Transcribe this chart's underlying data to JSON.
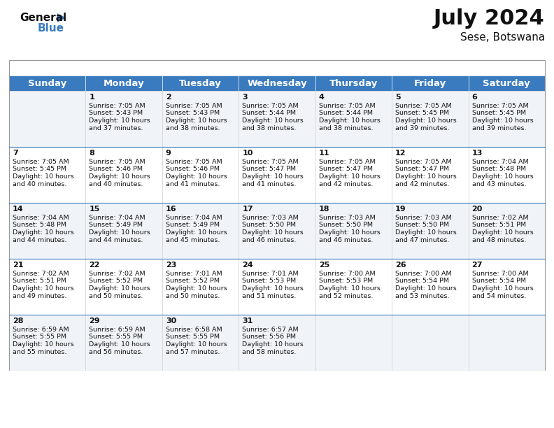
{
  "title": "July 2024",
  "subtitle": "Sese, Botswana",
  "header_color": "#3a7bbf",
  "header_text_color": "#ffffff",
  "row_bg_even": "#f0f4f8",
  "row_bg_odd": "#ffffff",
  "divider_color": "#3a7bbf",
  "cell_border_color": "#cccccc",
  "day_headers": [
    "Sunday",
    "Monday",
    "Tuesday",
    "Wednesday",
    "Thursday",
    "Friday",
    "Saturday"
  ],
  "title_fontsize": 22,
  "subtitle_fontsize": 11,
  "header_fontsize": 9.5,
  "cell_fontsize": 6.8,
  "day_num_fontsize": 8,
  "weeks": [
    [
      {
        "day": "",
        "sunrise": "",
        "sunset": "",
        "daylight": ""
      },
      {
        "day": "1",
        "sunrise": "7:05 AM",
        "sunset": "5:43 PM",
        "daylight": "10 hours and 37 minutes."
      },
      {
        "day": "2",
        "sunrise": "7:05 AM",
        "sunset": "5:43 PM",
        "daylight": "10 hours and 38 minutes."
      },
      {
        "day": "3",
        "sunrise": "7:05 AM",
        "sunset": "5:44 PM",
        "daylight": "10 hours and 38 minutes."
      },
      {
        "day": "4",
        "sunrise": "7:05 AM",
        "sunset": "5:44 PM",
        "daylight": "10 hours and 38 minutes."
      },
      {
        "day": "5",
        "sunrise": "7:05 AM",
        "sunset": "5:45 PM",
        "daylight": "10 hours and 39 minutes."
      },
      {
        "day": "6",
        "sunrise": "7:05 AM",
        "sunset": "5:45 PM",
        "daylight": "10 hours and 39 minutes."
      }
    ],
    [
      {
        "day": "7",
        "sunrise": "7:05 AM",
        "sunset": "5:45 PM",
        "daylight": "10 hours and 40 minutes."
      },
      {
        "day": "8",
        "sunrise": "7:05 AM",
        "sunset": "5:46 PM",
        "daylight": "10 hours and 40 minutes."
      },
      {
        "day": "9",
        "sunrise": "7:05 AM",
        "sunset": "5:46 PM",
        "daylight": "10 hours and 41 minutes."
      },
      {
        "day": "10",
        "sunrise": "7:05 AM",
        "sunset": "5:47 PM",
        "daylight": "10 hours and 41 minutes."
      },
      {
        "day": "11",
        "sunrise": "7:05 AM",
        "sunset": "5:47 PM",
        "daylight": "10 hours and 42 minutes."
      },
      {
        "day": "12",
        "sunrise": "7:05 AM",
        "sunset": "5:47 PM",
        "daylight": "10 hours and 42 minutes."
      },
      {
        "day": "13",
        "sunrise": "7:04 AM",
        "sunset": "5:48 PM",
        "daylight": "10 hours and 43 minutes."
      }
    ],
    [
      {
        "day": "14",
        "sunrise": "7:04 AM",
        "sunset": "5:48 PM",
        "daylight": "10 hours and 44 minutes."
      },
      {
        "day": "15",
        "sunrise": "7:04 AM",
        "sunset": "5:49 PM",
        "daylight": "10 hours and 44 minutes."
      },
      {
        "day": "16",
        "sunrise": "7:04 AM",
        "sunset": "5:49 PM",
        "daylight": "10 hours and 45 minutes."
      },
      {
        "day": "17",
        "sunrise": "7:03 AM",
        "sunset": "5:50 PM",
        "daylight": "10 hours and 46 minutes."
      },
      {
        "day": "18",
        "sunrise": "7:03 AM",
        "sunset": "5:50 PM",
        "daylight": "10 hours and 46 minutes."
      },
      {
        "day": "19",
        "sunrise": "7:03 AM",
        "sunset": "5:50 PM",
        "daylight": "10 hours and 47 minutes."
      },
      {
        "day": "20",
        "sunrise": "7:02 AM",
        "sunset": "5:51 PM",
        "daylight": "10 hours and 48 minutes."
      }
    ],
    [
      {
        "day": "21",
        "sunrise": "7:02 AM",
        "sunset": "5:51 PM",
        "daylight": "10 hours and 49 minutes."
      },
      {
        "day": "22",
        "sunrise": "7:02 AM",
        "sunset": "5:52 PM",
        "daylight": "10 hours and 50 minutes."
      },
      {
        "day": "23",
        "sunrise": "7:01 AM",
        "sunset": "5:52 PM",
        "daylight": "10 hours and 50 minutes."
      },
      {
        "day": "24",
        "sunrise": "7:01 AM",
        "sunset": "5:53 PM",
        "daylight": "10 hours and 51 minutes."
      },
      {
        "day": "25",
        "sunrise": "7:00 AM",
        "sunset": "5:53 PM",
        "daylight": "10 hours and 52 minutes."
      },
      {
        "day": "26",
        "sunrise": "7:00 AM",
        "sunset": "5:54 PM",
        "daylight": "10 hours and 53 minutes."
      },
      {
        "day": "27",
        "sunrise": "7:00 AM",
        "sunset": "5:54 PM",
        "daylight": "10 hours and 54 minutes."
      }
    ],
    [
      {
        "day": "28",
        "sunrise": "6:59 AM",
        "sunset": "5:55 PM",
        "daylight": "10 hours and 55 minutes."
      },
      {
        "day": "29",
        "sunrise": "6:59 AM",
        "sunset": "5:55 PM",
        "daylight": "10 hours and 56 minutes."
      },
      {
        "day": "30",
        "sunrise": "6:58 AM",
        "sunset": "5:55 PM",
        "daylight": "10 hours and 57 minutes."
      },
      {
        "day": "31",
        "sunrise": "6:57 AM",
        "sunset": "5:56 PM",
        "daylight": "10 hours and 58 minutes."
      },
      {
        "day": "",
        "sunrise": "",
        "sunset": "",
        "daylight": ""
      },
      {
        "day": "",
        "sunrise": "",
        "sunset": "",
        "daylight": ""
      },
      {
        "day": "",
        "sunrise": "",
        "sunset": "",
        "daylight": ""
      }
    ]
  ],
  "logo_text1": "General",
  "logo_text2": "Blue",
  "logo_color1": "#111111",
  "logo_color2": "#3a7bbf",
  "logo_triangle_color": "#3a7bbf"
}
